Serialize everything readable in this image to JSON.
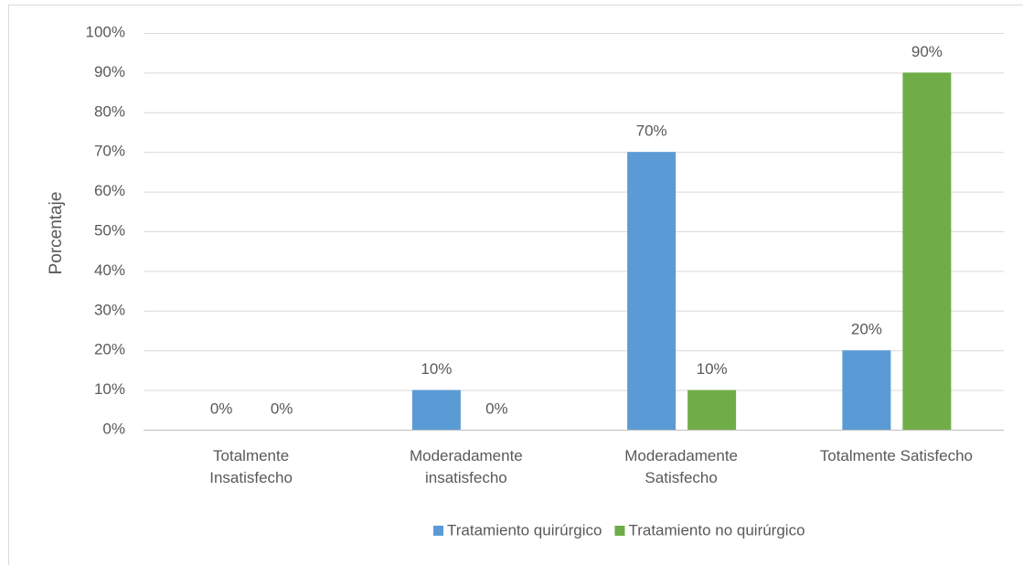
{
  "chart_data": {
    "type": "bar",
    "y_label": "Porcentaje",
    "categories": [
      "Totalmente\nInsatisfecho",
      "Moderadamente\ninsatisfecho",
      "Moderadamente\nSatisfecho",
      "Totalmente Satisfecho"
    ],
    "series": [
      {
        "name": "Tratamiento quirúrgico",
        "color": "#5b9bd5",
        "values": [
          0,
          10,
          70,
          20
        ],
        "value_labels": [
          "0%",
          "10%",
          "70%",
          "20%"
        ]
      },
      {
        "name": "Tratamiento no quirúrgico",
        "color": "#70ad47",
        "values": [
          0,
          0,
          10,
          90
        ],
        "value_labels": [
          "0%",
          "0%",
          "10%",
          "90%"
        ]
      }
    ],
    "ylim": [
      0,
      100
    ],
    "yticks": [
      {
        "value": 0,
        "label": "0%"
      },
      {
        "value": 10,
        "label": "10%"
      },
      {
        "value": 20,
        "label": "20%"
      },
      {
        "value": 30,
        "label": "30%"
      },
      {
        "value": 40,
        "label": "40%"
      },
      {
        "value": 50,
        "label": "50%"
      },
      {
        "value": 60,
        "label": "60%"
      },
      {
        "value": 70,
        "label": "70%"
      },
      {
        "value": 80,
        "label": "80%"
      },
      {
        "value": 90,
        "label": "90%"
      },
      {
        "value": 100,
        "label": "100%"
      }
    ],
    "grid": true,
    "legend": "bottom"
  }
}
